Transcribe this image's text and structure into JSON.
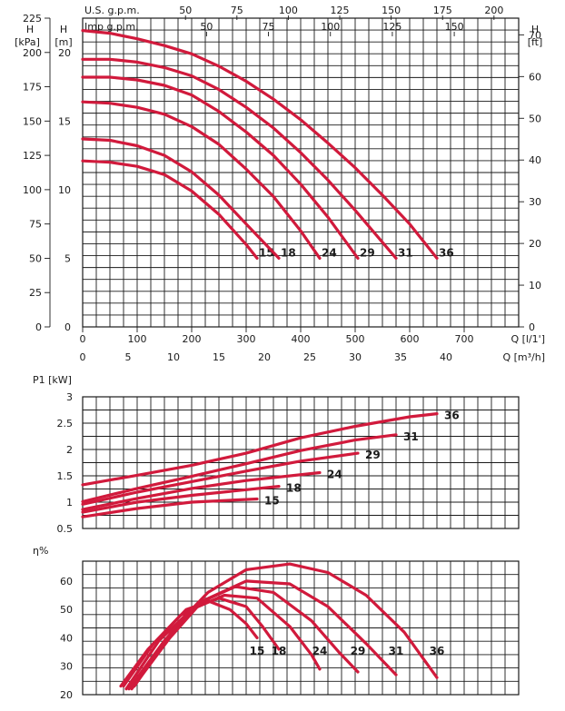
{
  "colors": {
    "curve": "#d11a3c",
    "grid": "#1a1a1a"
  },
  "head_chart": {
    "type": "line",
    "left_axes": [
      {
        "title": "H",
        "unit": "[kPa]",
        "ticks": [
          0,
          25,
          50,
          75,
          100,
          125,
          150,
          175,
          200,
          225
        ],
        "range": [
          0,
          225
        ]
      },
      {
        "title": "H",
        "unit": "[m]",
        "ticks": [
          0,
          5,
          10,
          15,
          20
        ],
        "range": [
          0,
          22.5
        ]
      }
    ],
    "right_axis": {
      "title": "H",
      "unit": "[ft]",
      "ticks": [
        0,
        10,
        20,
        30,
        40,
        50,
        60,
        70
      ],
      "range": [
        0,
        74
      ]
    },
    "top_axes": [
      {
        "label": "U.S. g.p.m.",
        "ticks": [
          50,
          75,
          100,
          125,
          150,
          175,
          200
        ],
        "range": [
          0,
          212
        ]
      },
      {
        "label": "Imp g.p.m.",
        "ticks": [
          50,
          75,
          100,
          125,
          150
        ],
        "range": [
          0,
          176
        ]
      }
    ],
    "bottom_axes": [
      {
        "label": "Q [l/1']",
        "ticks": [
          0,
          100,
          200,
          300,
          400,
          500,
          600,
          700
        ],
        "range": [
          0,
          800
        ]
      },
      {
        "label": "Q [m³/h]",
        "ticks": [
          0,
          5,
          10,
          15,
          20,
          25,
          30,
          35,
          40
        ],
        "range": [
          0,
          48
        ]
      }
    ],
    "series": [
      {
        "name": "15",
        "x": [
          0,
          50,
          100,
          150,
          200,
          250,
          300,
          320
        ],
        "y": [
          12.1,
          12.0,
          11.7,
          11.1,
          9.9,
          8.2,
          6.0,
          5.0
        ]
      },
      {
        "name": "18",
        "x": [
          0,
          50,
          100,
          150,
          200,
          250,
          300,
          360
        ],
        "y": [
          13.7,
          13.6,
          13.2,
          12.5,
          11.3,
          9.6,
          7.5,
          5.0
        ]
      },
      {
        "name": "24",
        "x": [
          0,
          50,
          100,
          150,
          200,
          250,
          300,
          350,
          400,
          435
        ],
        "y": [
          16.4,
          16.3,
          16.0,
          15.5,
          14.6,
          13.3,
          11.5,
          9.5,
          7.0,
          5.0
        ]
      },
      {
        "name": "29",
        "x": [
          0,
          50,
          100,
          150,
          200,
          250,
          300,
          350,
          400,
          450,
          505
        ],
        "y": [
          18.2,
          18.2,
          18.0,
          17.6,
          16.9,
          15.7,
          14.2,
          12.5,
          10.4,
          8.0,
          5.0
        ]
      },
      {
        "name": "31",
        "x": [
          0,
          50,
          100,
          150,
          200,
          250,
          300,
          350,
          400,
          450,
          500,
          575
        ],
        "y": [
          19.5,
          19.5,
          19.3,
          18.9,
          18.3,
          17.3,
          16.0,
          14.5,
          12.7,
          10.7,
          8.5,
          5.0
        ]
      },
      {
        "name": "36",
        "x": [
          0,
          50,
          100,
          150,
          200,
          250,
          300,
          350,
          400,
          450,
          500,
          550,
          600,
          650
        ],
        "y": [
          21.6,
          21.4,
          21.0,
          20.5,
          19.9,
          19.0,
          17.9,
          16.6,
          15.1,
          13.4,
          11.6,
          9.6,
          7.5,
          5.0
        ]
      }
    ]
  },
  "power_chart": {
    "type": "line",
    "y_axis": {
      "label": "P1 [kW]",
      "ticks": [
        "0.5",
        "1",
        "1.5",
        "2",
        "2.5",
        "3"
      ],
      "range": [
        0.5,
        3.0
      ]
    },
    "x_range_l_min": [
      0,
      800
    ],
    "series": [
      {
        "name": "15",
        "x": [
          0,
          100,
          200,
          320
        ],
        "y": [
          0.72,
          0.88,
          1.0,
          1.06
        ]
      },
      {
        "name": "18",
        "x": [
          0,
          100,
          200,
          360
        ],
        "y": [
          0.81,
          1.0,
          1.13,
          1.3
        ]
      },
      {
        "name": "24",
        "x": [
          0,
          100,
          200,
          300,
          435
        ],
        "y": [
          0.86,
          1.07,
          1.26,
          1.41,
          1.56
        ]
      },
      {
        "name": "29",
        "x": [
          0,
          100,
          200,
          300,
          400,
          505
        ],
        "y": [
          0.96,
          1.19,
          1.39,
          1.59,
          1.78,
          1.93
        ]
      },
      {
        "name": "31",
        "x": [
          0,
          100,
          200,
          300,
          400,
          500,
          575
        ],
        "y": [
          1.01,
          1.26,
          1.49,
          1.73,
          1.98,
          2.18,
          2.28
        ]
      },
      {
        "name": "36",
        "x": [
          0,
          100,
          200,
          300,
          400,
          500,
          600,
          650
        ],
        "y": [
          1.33,
          1.51,
          1.7,
          1.93,
          2.22,
          2.44,
          2.62,
          2.68
        ]
      }
    ]
  },
  "efficiency_chart": {
    "type": "line",
    "y_axis": {
      "label": "η%",
      "ticks": [
        20,
        30,
        40,
        50,
        60
      ],
      "range": [
        20,
        67
      ]
    },
    "x_range_l_min": [
      0,
      800
    ],
    "series": [
      {
        "name": "15",
        "x": [
          70,
          120,
          180,
          230,
          270,
          300,
          320
        ],
        "y": [
          23,
          36,
          48,
          53,
          50,
          45,
          40
        ]
      },
      {
        "name": "18",
        "x": [
          75,
          130,
          190,
          250,
          300,
          330,
          360
        ],
        "y": [
          23,
          38,
          50,
          54,
          51,
          44,
          36
        ]
      },
      {
        "name": "24",
        "x": [
          80,
          140,
          200,
          260,
          320,
          380,
          420,
          435
        ],
        "y": [
          22,
          39,
          50,
          55,
          54,
          44,
          34,
          29
        ]
      },
      {
        "name": "29",
        "x": [
          85,
          150,
          210,
          280,
          350,
          420,
          470,
          505
        ],
        "y": [
          22,
          39,
          52,
          58,
          56,
          46,
          35,
          28
        ]
      },
      {
        "name": "31",
        "x": [
          90,
          160,
          220,
          300,
          380,
          450,
          520,
          575
        ],
        "y": [
          22,
          40,
          53,
          60,
          59,
          51,
          38,
          27
        ]
      },
      {
        "name": "36",
        "x": [
          95,
          170,
          230,
          300,
          380,
          450,
          520,
          590,
          650
        ],
        "y": [
          23,
          44,
          56,
          64,
          66,
          63,
          55,
          42,
          26
        ]
      }
    ]
  }
}
